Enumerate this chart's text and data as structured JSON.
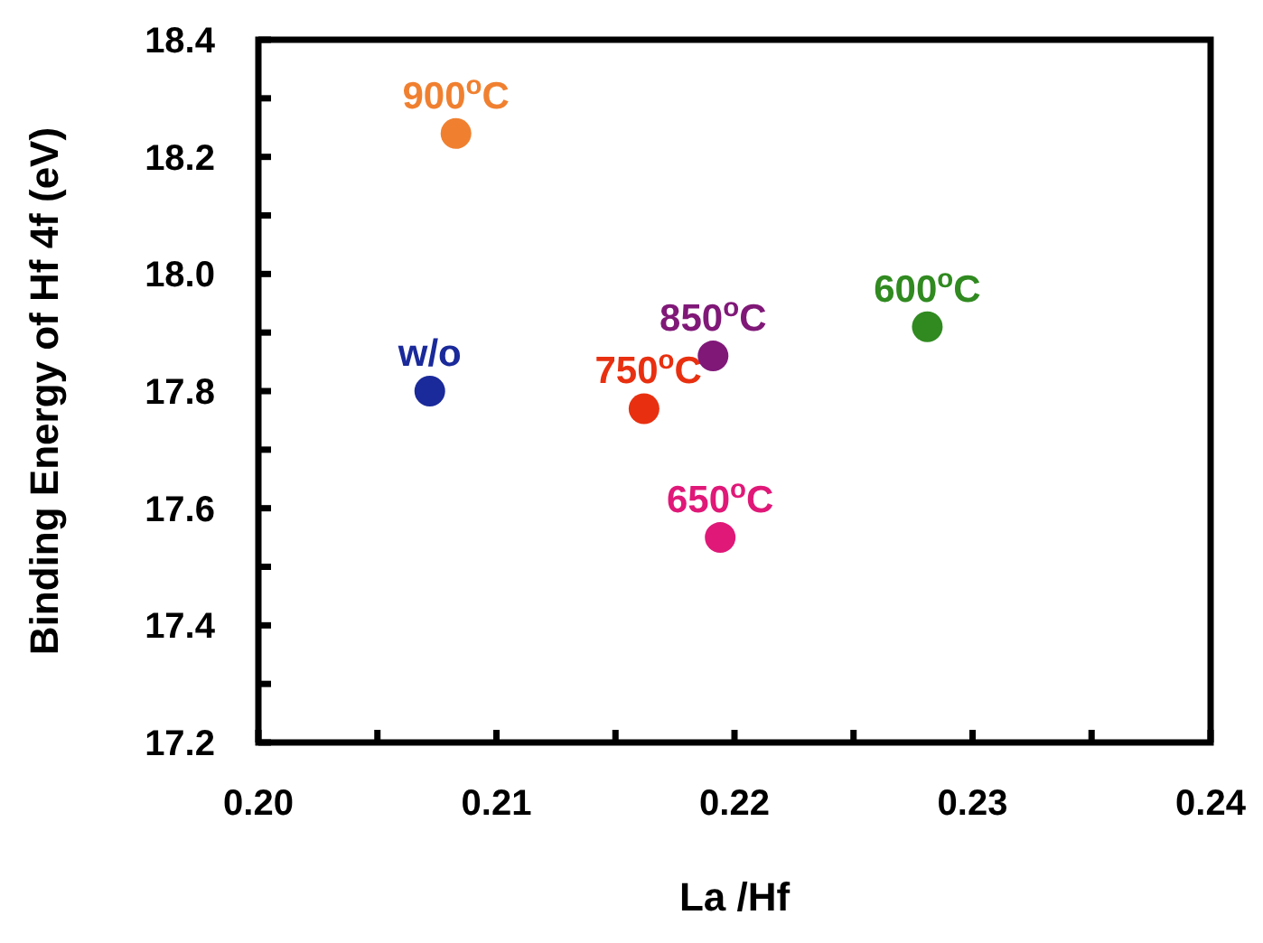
{
  "chart_data": {
    "type": "scatter",
    "xlabel": "La /Hf",
    "ylabel": "Binding Energy of Hf 4f (eV)",
    "xlim": [
      0.2,
      0.24
    ],
    "ylim": [
      17.2,
      18.4
    ],
    "xticks": [
      "0.20",
      {
        "value": 0.205,
        "label": null
      },
      {
        "value": 0.21,
        "label": "0.21"
      },
      {
        "value": 0.215,
        "label": null
      },
      {
        "value": 0.22,
        "label": "0.22"
      },
      {
        "value": 0.225,
        "label": null
      },
      {
        "value": 0.23,
        "label": "0.23"
      },
      {
        "value": 0.235,
        "label": null
      },
      {
        "value": 0.24,
        "label": "0.24"
      }
    ],
    "yticks": [
      {
        "value": 17.2,
        "label": "17.2"
      },
      {
        "value": 17.3,
        "label": null
      },
      {
        "value": 17.4,
        "label": "17.4"
      },
      {
        "value": 17.5,
        "label": null
      },
      {
        "value": 17.6,
        "label": "17.6"
      },
      {
        "value": 17.7,
        "label": null
      },
      {
        "value": 17.8,
        "label": "17.8"
      },
      {
        "value": 17.9,
        "label": null
      },
      {
        "value": 18.0,
        "label": "18.0"
      },
      {
        "value": 18.1,
        "label": null
      },
      {
        "value": 18.2,
        "label": "18.2"
      },
      {
        "value": 18.3,
        "label": null
      },
      {
        "value": 18.4,
        "label": "18.4"
      }
    ],
    "grid": false,
    "marker": "circle",
    "series": [
      {
        "name": "w/o",
        "color": "#1a2a9a",
        "x": [
          0.2072
        ],
        "values": [
          17.8
        ]
      },
      {
        "name": "900$^{o}$C",
        "color": "#f08030",
        "x": [
          0.2083
        ],
        "values": [
          18.24
        ]
      },
      {
        "name": "750$^{o}$C",
        "color": "#e83010",
        "x": [
          0.2162
        ],
        "values": [
          17.77
        ]
      },
      {
        "name": "850$^{o}$C",
        "color": "#801878",
        "x": [
          0.2191
        ],
        "values": [
          17.86
        ]
      },
      {
        "name": "650$^{o}$C",
        "color": "#e01878",
        "x": [
          0.2194
        ],
        "values": [
          17.55
        ]
      },
      {
        "name": "600$^{o}$C",
        "color": "#308a20",
        "x": [
          0.2281
        ],
        "values": [
          17.91
        ]
      }
    ]
  }
}
